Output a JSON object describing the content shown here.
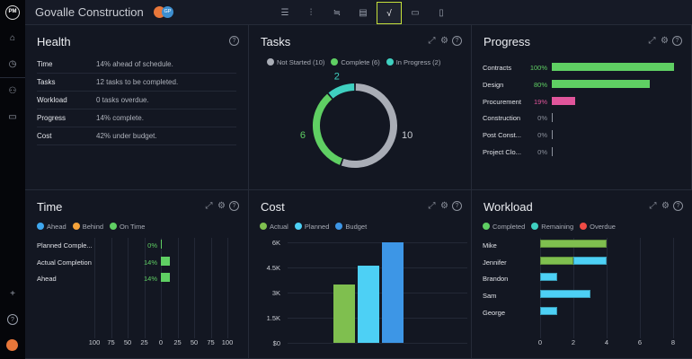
{
  "header": {
    "title": "Govalle Construction",
    "avatar_initials": "GP",
    "tools": [
      {
        "icon": "list-icon",
        "glyph": "☰"
      },
      {
        "icon": "board-icon",
        "glyph": "⫶"
      },
      {
        "icon": "gantt-icon",
        "glyph": "≒"
      },
      {
        "icon": "sheet-icon",
        "glyph": "▤"
      },
      {
        "icon": "dashboard-icon",
        "glyph": "√"
      },
      {
        "icon": "calendar-icon",
        "glyph": "▭"
      },
      {
        "icon": "file-icon",
        "glyph": "▯"
      }
    ],
    "active_tool": 4,
    "accent": "#c5e03a"
  },
  "sidebar": {
    "logo": "PM",
    "items": [
      {
        "icon": "home-icon",
        "glyph": "⌂"
      },
      {
        "icon": "clock-icon",
        "glyph": "◷"
      },
      {
        "icon": "people-icon",
        "glyph": "⚇"
      },
      {
        "icon": "briefcase-icon",
        "glyph": "▭"
      }
    ],
    "add": "+",
    "help": "?"
  },
  "health": {
    "title": "Health",
    "rows": [
      {
        "k": "Time",
        "v": "14% ahead of schedule."
      },
      {
        "k": "Tasks",
        "v": "12 tasks to be completed."
      },
      {
        "k": "Workload",
        "v": "0 tasks overdue."
      },
      {
        "k": "Progress",
        "v": "14% complete."
      },
      {
        "k": "Cost",
        "v": "42% under budget."
      }
    ]
  },
  "tasks": {
    "title": "Tasks",
    "chart_data": {
      "type": "pie",
      "donut": true,
      "legend": [
        "Not Started (10)",
        "Complete (6)",
        "In Progress (2)"
      ],
      "categories": [
        "Not Started",
        "Complete",
        "In Progress"
      ],
      "values": [
        10,
        6,
        2
      ],
      "labels": [
        "10",
        "6",
        "2"
      ],
      "colors": [
        "#a9adb6",
        "#5fcf63",
        "#3fd0c0"
      ]
    }
  },
  "progress": {
    "title": "Progress",
    "chart_data": {
      "type": "bar",
      "orientation": "horizontal",
      "categories": [
        "Contracts",
        "Design",
        "Procurement",
        "Construction",
        "Post Const...",
        "Project Clo..."
      ],
      "values": [
        100,
        80,
        19,
        0,
        0,
        0
      ],
      "labels": [
        "100%",
        "80%",
        "19%",
        "0%",
        "0%",
        "0%"
      ],
      "colors": [
        "#5fcf63",
        "#5fcf63",
        "#e0559b",
        "#8c919c",
        "#8c919c",
        "#8c919c"
      ],
      "xlim": [
        0,
        100
      ]
    }
  },
  "time": {
    "title": "Time",
    "legend": [
      {
        "label": "Ahead",
        "color": "#3ea7ee"
      },
      {
        "label": "Behind",
        "color": "#f5a23a"
      },
      {
        "label": "On Time",
        "color": "#5fcf63"
      }
    ],
    "chart_data": {
      "type": "bar",
      "orientation": "horizontal",
      "categories": [
        "Planned Comple...",
        "Actual Completion",
        "Ahead"
      ],
      "values": [
        0,
        14,
        14
      ],
      "labels": [
        "0%",
        "14%",
        "14%"
      ],
      "xlim": [
        -100,
        100
      ],
      "xticks": [
        "100",
        "75",
        "50",
        "25",
        "0",
        "25",
        "50",
        "75",
        "100"
      ],
      "color": "#5fcf63"
    }
  },
  "cost": {
    "title": "Cost",
    "legend": [
      {
        "label": "Actual",
        "color": "#7fbf4f"
      },
      {
        "label": "Planned",
        "color": "#4dd0f5"
      },
      {
        "label": "Budget",
        "color": "#3d96e6"
      }
    ],
    "chart_data": {
      "type": "bar",
      "series": [
        {
          "name": "Actual",
          "values": [
            3500
          ]
        },
        {
          "name": "Planned",
          "values": [
            4600
          ]
        },
        {
          "name": "Budget",
          "values": [
            6000
          ]
        }
      ],
      "ylim": [
        0,
        6000
      ],
      "yticks": [
        "$0",
        "1.5K",
        "3K",
        "4.5K",
        "6K"
      ],
      "colors": [
        "#7fbf4f",
        "#4dd0f5",
        "#3d96e6"
      ]
    }
  },
  "workload": {
    "title": "Workload",
    "legend": [
      {
        "label": "Completed",
        "color": "#5fcf63"
      },
      {
        "label": "Remaining",
        "color": "#3fd0c0"
      },
      {
        "label": "Overdue",
        "color": "#ee4b45"
      }
    ],
    "chart_data": {
      "type": "bar",
      "orientation": "horizontal",
      "stacked": true,
      "categories": [
        "Mike",
        "Jennifer",
        "Brandon",
        "Sam",
        "George"
      ],
      "series": [
        {
          "name": "Completed",
          "values": [
            4,
            2,
            0,
            0,
            0
          ]
        },
        {
          "name": "Remaining",
          "values": [
            0,
            2,
            1,
            3,
            1
          ]
        },
        {
          "name": "Overdue",
          "values": [
            0,
            0,
            0,
            0,
            0
          ]
        }
      ],
      "xlim": [
        0,
        8
      ],
      "xticks": [
        "0",
        "2",
        "4",
        "6",
        "8"
      ],
      "colors": [
        "#7fbf4f",
        "#4dd0f5",
        "#ee4b45"
      ]
    }
  }
}
